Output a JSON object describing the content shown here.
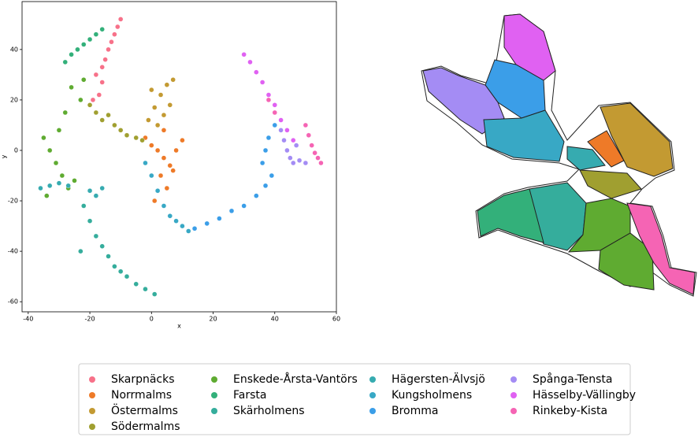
{
  "chart_data": {
    "type": "scatter",
    "xlabel": "x",
    "ylabel": "y",
    "xlim": [
      -42,
      60
    ],
    "ylim": [
      -64,
      59
    ],
    "xticks": [
      -40,
      -20,
      0,
      20,
      40,
      60
    ],
    "yticks": [
      -60,
      -40,
      -20,
      0,
      20,
      40
    ],
    "series": [
      {
        "name": "Skarpnäcks",
        "color": "#f77189",
        "x": [
          -18,
          -16,
          -15,
          -14,
          -13,
          -12,
          -11,
          -10,
          -19,
          -17,
          -16
        ],
        "y": [
          30,
          33,
          36,
          40,
          43,
          46,
          49,
          52,
          20,
          22,
          27
        ]
      },
      {
        "name": "Norrmalms",
        "color": "#ee7a28",
        "x": [
          -2,
          0,
          2,
          4,
          6,
          8,
          10,
          3,
          5,
          1,
          7,
          4
        ],
        "y": [
          5,
          2,
          0,
          -3,
          -6,
          0,
          4,
          -10,
          -15,
          -20,
          -8,
          8
        ]
      },
      {
        "name": "Östermalms",
        "color": "#c39a32",
        "x": [
          -1,
          1,
          3,
          5,
          7,
          2,
          4,
          6,
          0
        ],
        "y": [
          12,
          17,
          22,
          26,
          28,
          10,
          14,
          18,
          24
        ]
      },
      {
        "name": "Södermalms",
        "color": "#a09f30",
        "x": [
          -20,
          -18,
          -16,
          -14,
          -12,
          -10,
          -8,
          -5,
          -3
        ],
        "y": [
          18,
          15,
          12,
          14,
          10,
          8,
          6,
          5,
          4
        ]
      },
      {
        "name": "Enskede-Årsta-Vantörs",
        "color": "#5fab31",
        "x": [
          -35,
          -33,
          -31,
          -29,
          -27,
          -25,
          -23,
          -34,
          -30,
          -26,
          -22,
          -28
        ],
        "y": [
          5,
          0,
          -5,
          -10,
          -15,
          -12,
          20,
          -18,
          8,
          25,
          28,
          15
        ]
      },
      {
        "name": "Farsta",
        "color": "#33b07a",
        "x": [
          -28,
          -26,
          -24,
          -22,
          -20,
          -18,
          -16
        ],
        "y": [
          35,
          38,
          40,
          42,
          44,
          46,
          48
        ]
      },
      {
        "name": "Skärholmens",
        "color": "#35ad9c",
        "x": [
          -22,
          -20,
          -18,
          -16,
          -14,
          -12,
          -10,
          -8,
          -5,
          -2,
          1,
          -23
        ],
        "y": [
          -22,
          -28,
          -34,
          -38,
          -42,
          -46,
          -48,
          -50,
          -53,
          -55,
          -57,
          -40
        ]
      },
      {
        "name": "Hägersten-Älvsjö",
        "color": "#36abb0",
        "x": [
          -36,
          -33,
          -30,
          -27,
          -20,
          -18,
          -16
        ],
        "y": [
          -15,
          -14,
          -13,
          -14,
          -16,
          -18,
          -15
        ]
      },
      {
        "name": "Kungsholmens",
        "color": "#38a8c5",
        "x": [
          -2,
          0,
          2,
          4,
          6,
          8,
          10,
          12
        ],
        "y": [
          -5,
          -10,
          -16,
          -22,
          -26,
          -28,
          -30,
          -32
        ]
      },
      {
        "name": "Bromma",
        "color": "#3b9ee8",
        "x": [
          14,
          18,
          22,
          26,
          30,
          34,
          37,
          39,
          36,
          37,
          38,
          40
        ],
        "y": [
          -31,
          -29,
          -27,
          -24,
          -22,
          -18,
          -14,
          -10,
          -5,
          0,
          5,
          10
        ]
      },
      {
        "name": "Spånga-Tensta",
        "color": "#a48cf4",
        "x": [
          42,
          43,
          44,
          45,
          46,
          47,
          48,
          50
        ],
        "y": [
          8,
          4,
          0,
          -3,
          -5,
          2,
          -4,
          -5
        ]
      },
      {
        "name": "Hässelby-Vällingby",
        "color": "#e061f2",
        "x": [
          30,
          32,
          34,
          36,
          38,
          40,
          42,
          44,
          46
        ],
        "y": [
          38,
          35,
          31,
          27,
          22,
          18,
          12,
          8,
          4
        ]
      },
      {
        "name": "Rinkeby-Kista",
        "color": "#f564b4",
        "x": [
          50,
          51,
          52,
          53,
          54,
          55,
          38,
          40
        ],
        "y": [
          10,
          6,
          2,
          -1,
          -3,
          -5,
          20,
          15
        ]
      }
    ]
  }
}
